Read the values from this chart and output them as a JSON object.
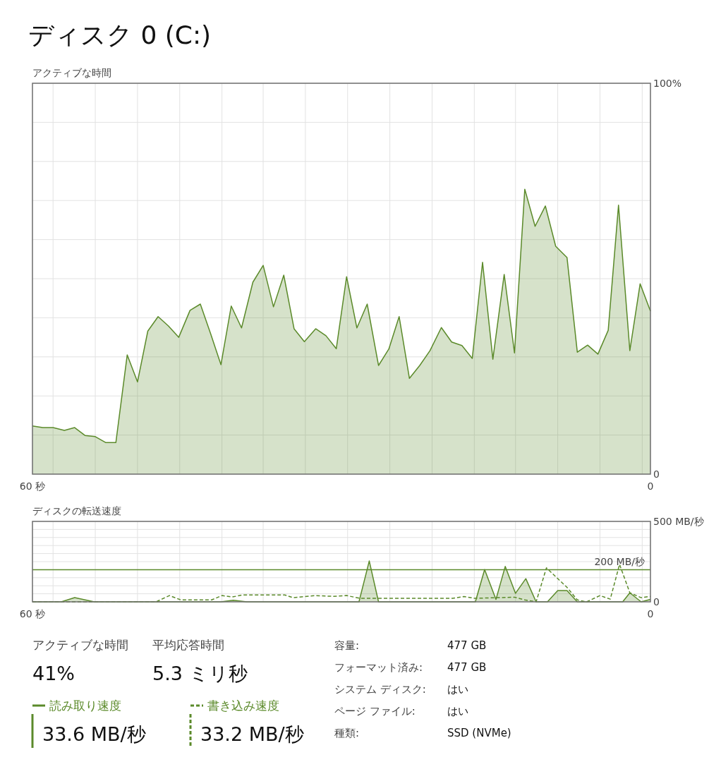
{
  "chart_data": [
    {
      "type": "area",
      "title": "ディスク 0 (C:)",
      "ylabel": "アクティブな時間",
      "color": "#5b8a2a",
      "grid": true,
      "legend": false,
      "xlim": [
        60,
        0
      ],
      "ylim": [
        0,
        100
      ],
      "xticks": [
        {
          "value": 60,
          "label": "60 秒"
        },
        {
          "value": 58.0,
          "label": null
        },
        {
          "value": 53.9,
          "label": null
        },
        {
          "value": 49.8,
          "label": null
        },
        {
          "value": 45.7,
          "label": null
        },
        {
          "value": 41.6,
          "label": null
        },
        {
          "value": 37.6,
          "label": null
        },
        {
          "value": 33.5,
          "label": null
        },
        {
          "value": 29.4,
          "label": null
        },
        {
          "value": 25.3,
          "label": null
        },
        {
          "value": 21.2,
          "label": null
        },
        {
          "value": 17.1,
          "label": null
        },
        {
          "value": 13.1,
          "label": null
        },
        {
          "value": 9.0,
          "label": null
        },
        {
          "value": 4.9,
          "label": null
        },
        {
          "value": 0.8,
          "label": null
        },
        {
          "value": 0,
          "label": "0"
        }
      ],
      "yticks": [
        {
          "value": 0,
          "label": "0"
        },
        {
          "value": 10,
          "label": null
        },
        {
          "value": 20,
          "label": null
        },
        {
          "value": 30,
          "label": null
        },
        {
          "value": 40,
          "label": null
        },
        {
          "value": 50,
          "label": null
        },
        {
          "value": 60,
          "label": null
        },
        {
          "value": 70,
          "label": null
        },
        {
          "value": 80,
          "label": null
        },
        {
          "value": 90,
          "label": null
        },
        {
          "value": 100,
          "label": "100%"
        }
      ],
      "x": [
        60,
        59.0,
        58.0,
        56.9,
        55.9,
        54.9,
        53.9,
        52.9,
        51.9,
        50.8,
        49.8,
        48.8,
        47.8,
        46.8,
        45.8,
        44.7,
        43.7,
        42.7,
        41.7,
        40.7,
        39.7,
        38.6,
        37.6,
        36.6,
        35.6,
        34.6,
        33.6,
        32.5,
        31.5,
        30.5,
        29.5,
        28.5,
        27.5,
        26.4,
        25.4,
        24.4,
        23.4,
        22.4,
        21.4,
        20.3,
        19.3,
        18.3,
        17.3,
        16.3,
        15.3,
        14.2,
        13.2,
        12.2,
        11.2,
        10.2,
        9.2,
        8.1,
        7.1,
        6.1,
        5.1,
        4.1,
        3.1,
        2.0,
        1.0,
        0
      ],
      "values": [
        12.3,
        11.9,
        11.9,
        11.2,
        11.9,
        9.9,
        9.6,
        8.1,
        8.1,
        30.5,
        23.6,
        36.6,
        40.3,
        37.9,
        35.0,
        41.9,
        43.5,
        35.9,
        28.0,
        43.0,
        37.4,
        49.1,
        53.4,
        42.8,
        50.9,
        37.2,
        33.9,
        37.2,
        35.4,
        32.1,
        50.5,
        37.4,
        43.5,
        27.8,
        32.0,
        40.3,
        24.5,
        27.8,
        31.6,
        37.5,
        33.8,
        32.9,
        29.6,
        54.2,
        29.4,
        51.1,
        31.0,
        72.9,
        63.4,
        68.6,
        58.3,
        55.4,
        31.2,
        33.0,
        30.7,
        36.8,
        68.8,
        31.6,
        48.7,
        41.7
      ]
    },
    {
      "type": "line",
      "ylabel": "ディスクの転送速度",
      "grid": true,
      "legend": "bottom",
      "xlim": [
        60,
        0
      ],
      "ylim": [
        0,
        500
      ],
      "xticks": [
        {
          "value": 60,
          "label": "60 秒"
        },
        {
          "value": 58.0,
          "label": null
        },
        {
          "value": 53.9,
          "label": null
        },
        {
          "value": 49.8,
          "label": null
        },
        {
          "value": 45.7,
          "label": null
        },
        {
          "value": 41.6,
          "label": null
        },
        {
          "value": 37.6,
          "label": null
        },
        {
          "value": 33.5,
          "label": null
        },
        {
          "value": 29.4,
          "label": null
        },
        {
          "value": 25.3,
          "label": null
        },
        {
          "value": 21.2,
          "label": null
        },
        {
          "value": 17.1,
          "label": null
        },
        {
          "value": 13.1,
          "label": null
        },
        {
          "value": 9.0,
          "label": null
        },
        {
          "value": 4.9,
          "label": null
        },
        {
          "value": 0.8,
          "label": null
        },
        {
          "value": 0,
          "label": "0"
        }
      ],
      "yticks": [
        {
          "value": 0,
          "label": "0"
        },
        {
          "value": 50,
          "label": null
        },
        {
          "value": 100,
          "label": null
        },
        {
          "value": 150,
          "label": null
        },
        {
          "value": 200,
          "label": null
        },
        {
          "value": 250,
          "label": null
        },
        {
          "value": 300,
          "label": null
        },
        {
          "value": 350,
          "label": null
        },
        {
          "value": 400,
          "label": null
        },
        {
          "value": 450,
          "label": null
        },
        {
          "value": 500,
          "label": "500 MB/秒"
        }
      ],
      "ref_lines": [
        {
          "axis": "y",
          "value": 200,
          "label": "200 MB/秒",
          "color": "#5b8a2a"
        }
      ],
      "annotations": [
        "33.6 MB/秒",
        "33.2 MB/秒"
      ],
      "series": [
        {
          "name": "読み取り速度",
          "type": "area",
          "color": "#5b8a2a",
          "line_style": "solid",
          "x": [
            60,
            57.2,
            55.9,
            54.0,
            41.7,
            40.5,
            39.2,
            28.3,
            27.3,
            26.4,
            17.0,
            16.1,
            15.0,
            14.1,
            13.1,
            12.1,
            11.1,
            10.0,
            9.0,
            8.1,
            7.1,
            2.7,
            2.0,
            0.9,
            0
          ],
          "values": [
            0,
            0,
            26,
            0,
            0,
            10,
            0,
            0,
            254,
            0,
            0,
            201,
            15,
            220,
            53,
            144,
            0,
            0,
            70,
            70,
            0,
            0,
            56,
            0,
            15
          ]
        },
        {
          "name": "書き込み速度",
          "type": "line",
          "color": "#5b8a2a",
          "line_style": "dashed",
          "x": [
            60,
            48.0,
            46.7,
            45.6,
            42.6,
            41.6,
            40.6,
            39.6,
            35.5,
            34.7,
            32.5,
            30.8,
            29.5,
            28.2,
            26.3,
            19.2,
            18.1,
            17.1,
            13.2,
            12.2,
            11.1,
            10.1,
            8.1,
            7.1,
            6.2,
            4.9,
            3.9,
            3.0,
            2.0,
            0.9,
            0
          ],
          "values": [
            0,
            0,
            39,
            12,
            12,
            39,
            30,
            43,
            43,
            26,
            39,
            34,
            39,
            22,
            22,
            22,
            33,
            22,
            29,
            12,
            0,
            211,
            90,
            12,
            0,
            39,
            17,
            233,
            56,
            26,
            34
          ]
        }
      ]
    },
    {
      "type": "other",
      "annotations": [
        "アクティブな時間",
        "41%",
        "平均応答時間",
        "5.3 ミリ秒",
        "容量:",
        "477 GB",
        "フォーマット済み:",
        "477 GB",
        "システム ディスク:",
        "はい",
        "ページ ファイル:",
        "はい",
        "種類:",
        "SSD (NVMe)"
      ]
    }
  ]
}
